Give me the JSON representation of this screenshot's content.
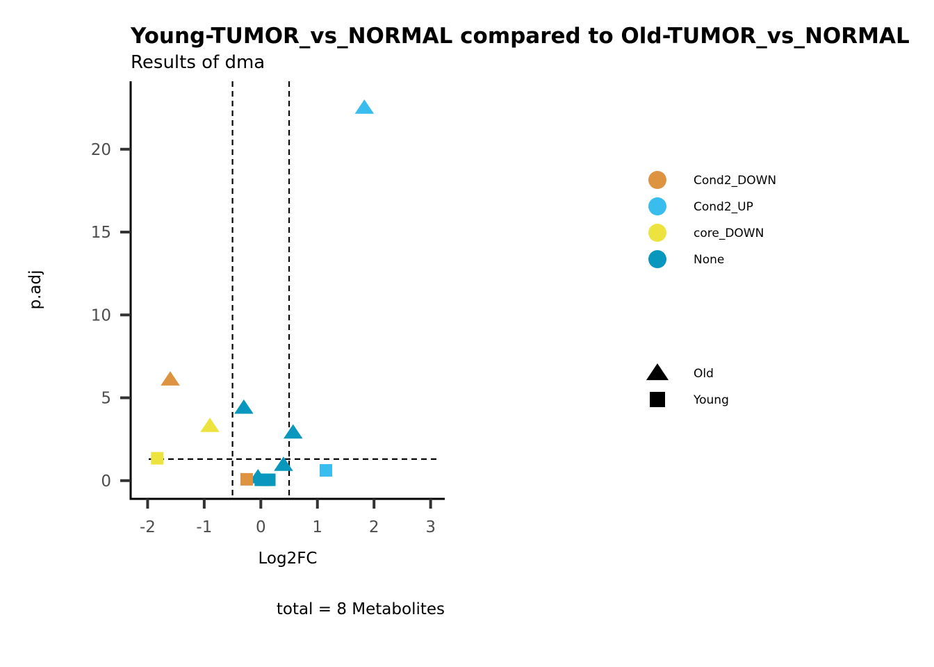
{
  "chart_data": {
    "type": "scatter",
    "title": "Young-TUMOR_vs_NORMAL compared to Old-TUMOR_vs_NORMAL",
    "subtitle": "Results of dma",
    "xlabel": "Log2FC",
    "ylabel": "p.adj",
    "caption": "total = 8 Metabolites",
    "xlim": [
      -2.3,
      3.25
    ],
    "ylim": [
      -1.1,
      24.1
    ],
    "xticks": [
      -2,
      -1,
      0,
      1,
      2,
      3
    ],
    "yticks": [
      0,
      5,
      10,
      15,
      20
    ],
    "xtick_labels": [
      "-2",
      "-1",
      "0",
      "1",
      "2",
      "3"
    ],
    "ytick_labels": [
      "0",
      "5",
      "10",
      "15",
      "20"
    ],
    "vlines": [
      -0.5,
      0.5
    ],
    "hlines": [
      1.3
    ],
    "grid": false,
    "legend_position": "right",
    "color_legend": [
      {
        "label": "Cond2_DOWN",
        "color": "#DD9340"
      },
      {
        "label": "Cond2_UP",
        "color": "#38BDEE"
      },
      {
        "label": "core_DOWN",
        "color": "#EDE33E"
      },
      {
        "label": "None",
        "color": "#0A97BD"
      }
    ],
    "shape_legend": [
      {
        "label": "Old",
        "shape": "triangle"
      },
      {
        "label": "Young",
        "shape": "square"
      }
    ],
    "points": [
      {
        "x": 1.83,
        "y": 22.5,
        "group": "Cond2_UP",
        "shape": "triangle"
      },
      {
        "x": -1.6,
        "y": 6.1,
        "group": "Cond2_DOWN",
        "shape": "triangle"
      },
      {
        "x": -0.9,
        "y": 3.3,
        "group": "core_DOWN",
        "shape": "triangle"
      },
      {
        "x": -0.3,
        "y": 4.4,
        "group": "None",
        "shape": "triangle"
      },
      {
        "x": 0.57,
        "y": 2.9,
        "group": "None",
        "shape": "triangle"
      },
      {
        "x": 0.4,
        "y": 0.95,
        "group": "None",
        "shape": "triangle"
      },
      {
        "x": -0.05,
        "y": 0.2,
        "group": "None",
        "shape": "triangle"
      },
      {
        "x": -1.83,
        "y": 1.35,
        "group": "core_DOWN",
        "shape": "square"
      },
      {
        "x": 1.15,
        "y": 0.62,
        "group": "Cond2_UP",
        "shape": "square"
      },
      {
        "x": -0.25,
        "y": 0.08,
        "group": "Cond2_DOWN",
        "shape": "square"
      },
      {
        "x": 0.0,
        "y": 0.05,
        "group": "None",
        "shape": "square"
      },
      {
        "x": 0.08,
        "y": 0.05,
        "group": "None",
        "shape": "square"
      },
      {
        "x": 0.15,
        "y": 0.05,
        "group": "None",
        "shape": "square"
      }
    ]
  }
}
